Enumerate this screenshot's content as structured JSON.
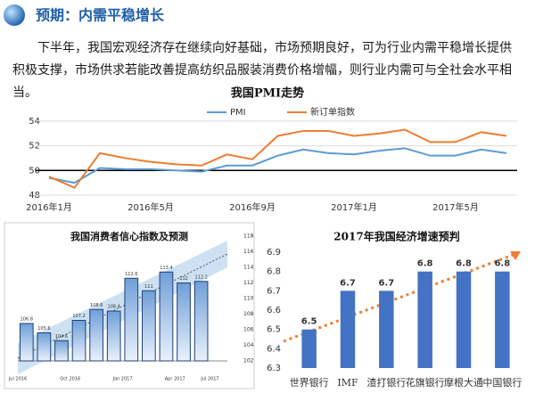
{
  "header": {
    "title": "预期：内需平稳增长"
  },
  "paragraph": "下半年，我国宏观经济存在继续向好基础，市场预期良好，可为行业内需平稳增长提供积极支撑，市场供求若能改善提高纺织品服装消费价格增幅，则行业内需可与全社会水平相当。",
  "chart_data": [
    {
      "type": "line",
      "title": "我国PMI走势",
      "categories": [
        "2016年1月",
        null,
        null,
        null,
        "2016年5月",
        null,
        null,
        null,
        "2016年9月",
        null,
        null,
        null,
        "2017年1月",
        null,
        null,
        null,
        "2017年5月",
        null,
        null
      ],
      "series": [
        {
          "name": "PMI",
          "color": "#5b9bd5",
          "values": [
            49.4,
            49.0,
            50.2,
            50.1,
            50.1,
            50.0,
            49.9,
            50.4,
            50.4,
            51.2,
            51.7,
            51.4,
            51.3,
            51.6,
            51.8,
            51.2,
            51.2,
            51.7,
            51.4
          ]
        },
        {
          "name": "新订单指数",
          "color": "#ed7d31",
          "values": [
            49.5,
            48.6,
            51.4,
            51.0,
            50.7,
            50.5,
            50.4,
            51.3,
            50.9,
            52.8,
            53.2,
            53.2,
            52.8,
            53.0,
            53.3,
            52.3,
            52.3,
            53.1,
            52.8
          ]
        }
      ],
      "reference_line": 50,
      "reference_color": "#000000",
      "ylim": [
        48,
        55
      ],
      "yticks": [
        48,
        50,
        52,
        54
      ],
      "grid": true,
      "legend": "top"
    },
    {
      "type": "bar",
      "title": "我国消费者信心指数及预测",
      "categories": [
        "Jul 2016",
        null,
        null,
        "Oct 2016",
        null,
        null,
        "Jan 2017",
        null,
        null,
        "Apr 2017",
        null
      ],
      "values": [
        106.8,
        105.6,
        104.6,
        107.2,
        108.6,
        108.4,
        112.6,
        111,
        113.4,
        112,
        112.2
      ],
      "extra_xticks": [
        "Jul 2017"
      ],
      "color": "#6f9fd8",
      "ylim": [
        102,
        118
      ],
      "yticks": [
        102,
        104,
        106,
        108,
        110,
        112,
        114,
        116,
        118
      ],
      "yaxis_position": "right",
      "grid": false
    },
    {
      "type": "bar",
      "title": "2017年我国经济增速预判",
      "categories": [
        "世界银行",
        "IMF",
        "渣打银行",
        "花旗银行",
        "摩根大通",
        "中国银行"
      ],
      "values": [
        6.5,
        6.7,
        6.7,
        6.8,
        6.8,
        6.8
      ],
      "color": "#4472c4",
      "ylim": [
        6.3,
        6.9
      ],
      "yticks": [
        6.3,
        6.4,
        6.5,
        6.6,
        6.7,
        6.8,
        6.9
      ],
      "yaxis_position": "left",
      "grid": false
    }
  ]
}
